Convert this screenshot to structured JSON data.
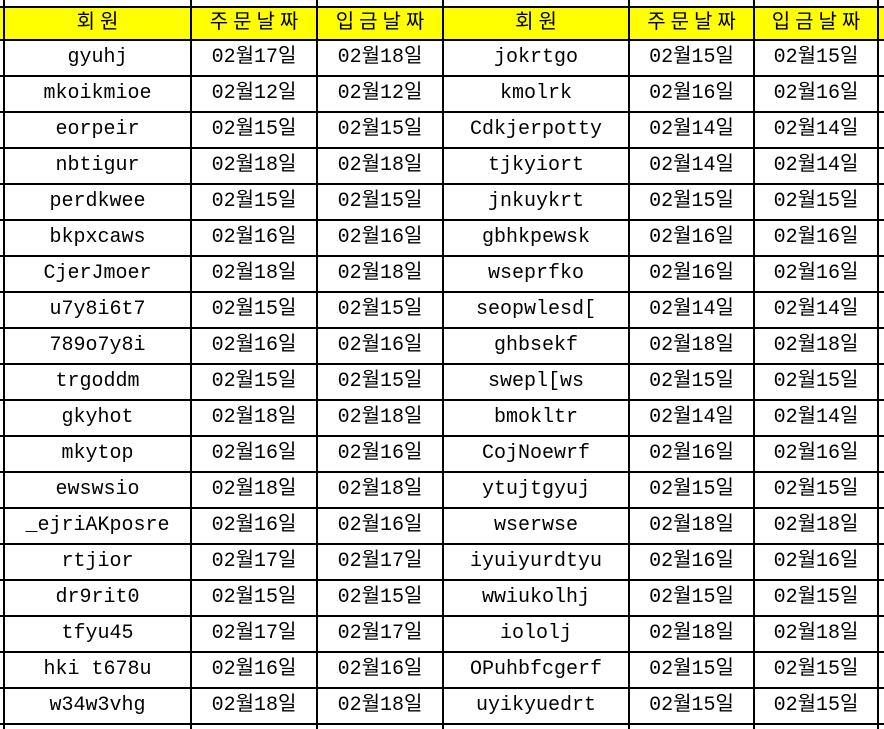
{
  "sheet": {
    "headers": [
      "회원",
      "주문날짜",
      "입금날짜",
      "회원",
      "주문날짜",
      "입금날짜"
    ],
    "column_kinds": [
      "member",
      "order-date",
      "deposit-date",
      "member",
      "order-date",
      "deposit-date"
    ],
    "rows": [
      [
        "gyuhj",
        "02월17일",
        "02월18일",
        "jokrtgo",
        "02월15일",
        "02월15일"
      ],
      [
        "mkoikmioe",
        "02월12일",
        "02월12일",
        "kmolrk",
        "02월16일",
        "02월16일"
      ],
      [
        "eorpeir",
        "02월15일",
        "02월15일",
        "Cdkjerpotty",
        "02월14일",
        "02월14일"
      ],
      [
        "nbtigur",
        "02월18일",
        "02월18일",
        "tjkyiort",
        "02월14일",
        "02월14일"
      ],
      [
        "perdkwee",
        "02월15일",
        "02월15일",
        "jnkuykrt",
        "02월15일",
        "02월15일"
      ],
      [
        "bkpxcaws",
        "02월16일",
        "02월16일",
        "gbhkpewsk",
        "02월16일",
        "02월16일"
      ],
      [
        "CjerJmoer",
        "02월18일",
        "02월18일",
        "wseprfko",
        "02월16일",
        "02월16일"
      ],
      [
        "u7y8i6t7",
        "02월15일",
        "02월15일",
        "seopwlesd[",
        "02월14일",
        "02월14일"
      ],
      [
        "789o7y8i",
        "02월16일",
        "02월16일",
        "ghbsekf",
        "02월18일",
        "02월18일"
      ],
      [
        "trgoddm",
        "02월15일",
        "02월15일",
        "swepl[ws",
        "02월15일",
        "02월15일"
      ],
      [
        "gkyhot",
        "02월18일",
        "02월18일",
        "bmokltr",
        "02월14일",
        "02월14일"
      ],
      [
        "mkytop",
        "02월16일",
        "02월16일",
        "CojNoewrf",
        "02월16일",
        "02월16일"
      ],
      [
        "ewswsio",
        "02월18일",
        "02월18일",
        "ytujtgyuj",
        "02월15일",
        "02월15일"
      ],
      [
        "_ejriAKposre",
        "02월16일",
        "02월16일",
        "wserwse",
        "02월18일",
        "02월18일"
      ],
      [
        "rtjior",
        "02월17일",
        "02월17일",
        "iyuiyurdtyu",
        "02월16일",
        "02월16일"
      ],
      [
        "dr9rit0",
        "02월15일",
        "02월15일",
        "wwiukolhj",
        "02월15일",
        "02월15일"
      ],
      [
        "tfyu45",
        "02월17일",
        "02월17일",
        "iololj",
        "02월18일",
        "02월18일"
      ],
      [
        "hki t678u",
        "02월16일",
        "02월16일",
        "OPuhbfcgerf",
        "02월15일",
        "02월15일"
      ],
      [
        "w34w3vhg",
        "02월18일",
        "02월18일",
        "uyikyuedrt",
        "02월15일",
        "02월15일"
      ]
    ]
  },
  "colors": {
    "header_bg": "#ffff00",
    "grid_line": "#000000",
    "cell_bg": "#ffffff",
    "text": "#000000"
  }
}
